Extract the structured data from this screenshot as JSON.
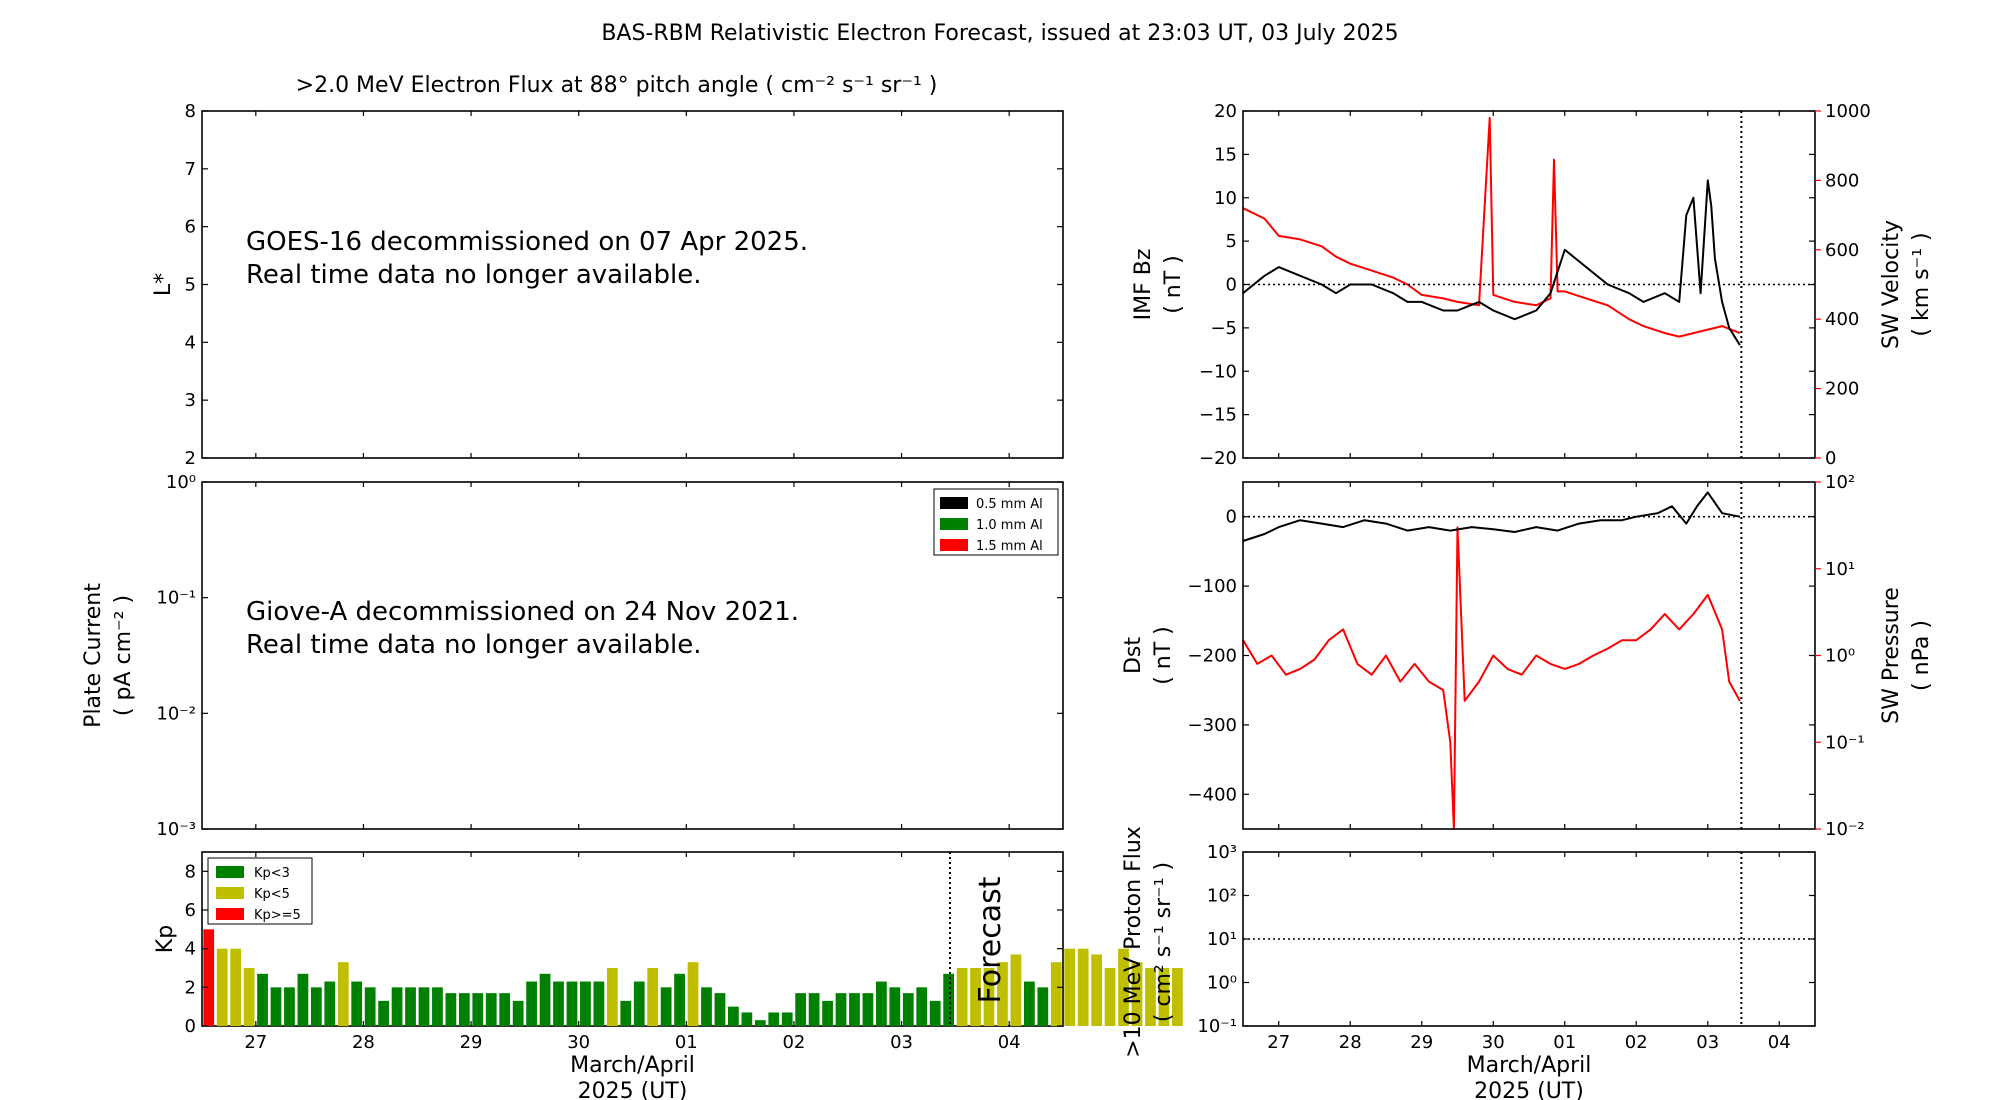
{
  "figure": {
    "title": "BAS-RBM Relativistic Electron Forecast, issued at 23:03 UT, 03 July 2025"
  },
  "colors": {
    "black": "#000000",
    "red": "#ff0000",
    "green": "#008000",
    "yellow": "#bfbf00",
    "forecast_text": "#c0c0c0"
  },
  "chart_data": [
    {
      "id": "electron_flux",
      "type": "heatmap",
      "title": ">2.0 MeV Electron Flux at 88° pitch angle ( cm⁻² s⁻¹ sr⁻¹ )",
      "ylabel": "L*",
      "ylim": [
        2,
        8
      ],
      "yticks": [
        "2",
        "3",
        "4",
        "5",
        "6",
        "7",
        "8"
      ],
      "grid": false,
      "annotation": [
        "GOES-16 decommissioned on 07 Apr 2025.",
        "Real time data no longer available."
      ]
    },
    {
      "id": "plate_current",
      "type": "line",
      "ylabel": [
        "Plate Current",
        "( pA cm⁻² )"
      ],
      "yscale": "log",
      "ylim": [
        0.001,
        1
      ],
      "yticks": [
        "10⁻³",
        "10⁻²",
        "10⁻¹",
        "10⁰"
      ],
      "legend_position": "top-right",
      "legend": [
        {
          "label": "0.5 mm Al",
          "color": "#000000"
        },
        {
          "label": "1.0 mm Al",
          "color": "#008000"
        },
        {
          "label": "1.5 mm Al",
          "color": "#ff0000"
        }
      ],
      "annotation": [
        "Giove-A decommissioned on 24 Nov 2021.",
        "Real time data no longer available."
      ]
    },
    {
      "id": "kp",
      "type": "bar",
      "ylabel": "Kp",
      "ylim": [
        0,
        9
      ],
      "yticks": [
        "0",
        "2",
        "4",
        "6",
        "8"
      ],
      "xlabel": [
        "March/April",
        "2025 (UT)"
      ],
      "xticks": [
        "27",
        "28",
        "29",
        "30",
        "01",
        "02",
        "03",
        "04"
      ],
      "forecast_label": "Forecast",
      "legend_position": "top-left",
      "legend": [
        {
          "label": "Kp<3",
          "color": "#008000"
        },
        {
          "label": "Kp<5",
          "color": "#bfbf00"
        },
        {
          "label": "Kp>=5",
          "color": "#ff0000"
        }
      ],
      "x_start_day": 26.5,
      "bar_width_days": 0.125,
      "forecast_start_day": 33.45,
      "values": [
        5.0,
        4.0,
        4.0,
        3.0,
        2.7,
        2.0,
        2.0,
        2.7,
        2.0,
        2.3,
        3.3,
        2.3,
        2.0,
        1.3,
        2.0,
        2.0,
        2.0,
        2.0,
        1.7,
        1.7,
        1.7,
        1.7,
        1.7,
        1.3,
        2.3,
        2.7,
        2.3,
        2.3,
        2.3,
        2.3,
        3.0,
        1.3,
        2.3,
        3.0,
        2.0,
        2.7,
        3.3,
        2.0,
        1.7,
        1.0,
        0.7,
        0.3,
        0.7,
        0.7,
        1.7,
        1.7,
        1.3,
        1.7,
        1.7,
        1.7,
        2.3,
        2.0,
        1.7,
        2.0,
        1.3,
        2.7,
        3.0,
        3.0,
        3.0,
        3.3,
        3.7,
        2.3,
        2.0,
        3.3,
        4.0,
        4.0,
        3.7,
        3.0,
        4.0,
        3.3,
        3.0,
        3.0,
        3.0
      ]
    },
    {
      "id": "imf_sw_velocity",
      "type": "line",
      "ylabel": [
        "IMF Bz",
        "( nT )"
      ],
      "ylim": [
        -20,
        20
      ],
      "yticks": [
        "−20",
        "−15",
        "−10",
        "−5",
        "0",
        "5",
        "10",
        "15",
        "20"
      ],
      "y2label": [
        "SW Velocity",
        "( km s⁻¹ )"
      ],
      "y2lim": [
        0,
        1000
      ],
      "y2ticks": [
        "0",
        "200",
        "400",
        "600",
        "800",
        "1000"
      ],
      "reference_line": 0,
      "now_day": 33.47,
      "series": [
        {
          "name": "IMF Bz",
          "axis": "left",
          "color": "#000000",
          "x": [
            26.5,
            26.8,
            27.0,
            27.3,
            27.6,
            27.8,
            28.0,
            28.3,
            28.6,
            28.8,
            29.0,
            29.3,
            29.5,
            29.8,
            30.0,
            30.3,
            30.6,
            30.8,
            31.0,
            31.3,
            31.6,
            31.9,
            32.1,
            32.4,
            32.6,
            32.7,
            32.8,
            32.9,
            33.0,
            33.05,
            33.1,
            33.2,
            33.3,
            33.45
          ],
          "y": [
            -1,
            1,
            2,
            1,
            0,
            -1,
            0,
            0,
            -1,
            -2,
            -2,
            -3,
            -3,
            -2,
            -3,
            -4,
            -3,
            -1,
            4,
            2,
            0,
            -1,
            -2,
            -1,
            -2,
            8,
            10,
            -1,
            12,
            9,
            3,
            -2,
            -5,
            -7
          ]
        },
        {
          "name": "SW Velocity",
          "axis": "right",
          "color": "#ff0000",
          "x": [
            26.5,
            26.8,
            27.0,
            27.3,
            27.6,
            27.8,
            28.0,
            28.3,
            28.6,
            28.8,
            29.0,
            29.3,
            29.5,
            29.8,
            29.95,
            30.0,
            30.3,
            30.6,
            30.8,
            30.85,
            30.9,
            31.0,
            31.3,
            31.6,
            31.9,
            32.1,
            32.4,
            32.6,
            32.8,
            33.0,
            33.2,
            33.45
          ],
          "y": [
            720,
            690,
            640,
            630,
            610,
            580,
            560,
            540,
            520,
            500,
            470,
            460,
            450,
            440,
            980,
            470,
            450,
            440,
            460,
            860,
            480,
            480,
            460,
            440,
            400,
            380,
            360,
            350,
            360,
            370,
            380,
            360
          ]
        }
      ]
    },
    {
      "id": "dst_sw_pressure",
      "type": "line",
      "ylabel": [
        "Dst",
        "( nT )"
      ],
      "ylim": [
        -450,
        50
      ],
      "yticks": [
        "−400",
        "−300",
        "−200",
        "−100",
        "0"
      ],
      "y2label": [
        "SW Pressure",
        "( nPa )"
      ],
      "y2scale": "log",
      "y2lim": [
        0.01,
        100
      ],
      "y2ticks": [
        "10⁻²",
        "10⁻¹",
        "10⁰",
        "10¹",
        "10²"
      ],
      "reference_line": 0,
      "now_day": 33.47,
      "series": [
        {
          "name": "Dst",
          "axis": "left",
          "color": "#000000",
          "x": [
            26.5,
            26.8,
            27.0,
            27.3,
            27.6,
            27.9,
            28.2,
            28.5,
            28.8,
            29.1,
            29.4,
            29.7,
            30.0,
            30.3,
            30.6,
            30.9,
            31.2,
            31.5,
            31.8,
            32.0,
            32.3,
            32.5,
            32.7,
            32.85,
            33.0,
            33.2,
            33.45
          ],
          "y": [
            -35,
            -25,
            -15,
            -5,
            -10,
            -15,
            -5,
            -10,
            -20,
            -15,
            -20,
            -15,
            -18,
            -22,
            -15,
            -20,
            -10,
            -5,
            -5,
            0,
            5,
            15,
            -10,
            15,
            35,
            5,
            0
          ]
        },
        {
          "name": "SW Pressure",
          "axis": "right",
          "color": "#ff0000",
          "x": [
            26.5,
            26.7,
            26.9,
            27.1,
            27.3,
            27.5,
            27.7,
            27.9,
            28.1,
            28.3,
            28.5,
            28.7,
            28.9,
            29.1,
            29.3,
            29.4,
            29.45,
            29.5,
            29.6,
            29.8,
            30.0,
            30.2,
            30.4,
            30.6,
            30.8,
            31.0,
            31.2,
            31.4,
            31.6,
            31.8,
            32.0,
            32.2,
            32.4,
            32.6,
            32.8,
            33.0,
            33.2,
            33.3,
            33.45
          ],
          "y": [
            1.5,
            0.8,
            1.0,
            0.6,
            0.7,
            0.9,
            1.5,
            2.0,
            0.8,
            0.6,
            1.0,
            0.5,
            0.8,
            0.5,
            0.4,
            0.1,
            0.01,
            30,
            0.3,
            0.5,
            1.0,
            0.7,
            0.6,
            1.0,
            0.8,
            0.7,
            0.8,
            1.0,
            1.2,
            1.5,
            1.5,
            2.0,
            3.0,
            2.0,
            3.0,
            5.0,
            2.0,
            0.5,
            0.3
          ]
        }
      ]
    },
    {
      "id": "proton_flux",
      "type": "line",
      "ylabel": [
        ">10 MeV Proton Flux",
        "( cm² s⁻¹ sr⁻¹ )"
      ],
      "yscale": "log",
      "ylim": [
        0.1,
        1000
      ],
      "yticks": [
        "10⁻¹",
        "10⁰",
        "10¹",
        "10²",
        "10³"
      ],
      "xlabel": [
        "March/April",
        "2025 (UT)"
      ],
      "xticks": [
        "27",
        "28",
        "29",
        "30",
        "01",
        "02",
        "03",
        "04"
      ],
      "threshold": 10,
      "now_day": 33.47
    }
  ]
}
